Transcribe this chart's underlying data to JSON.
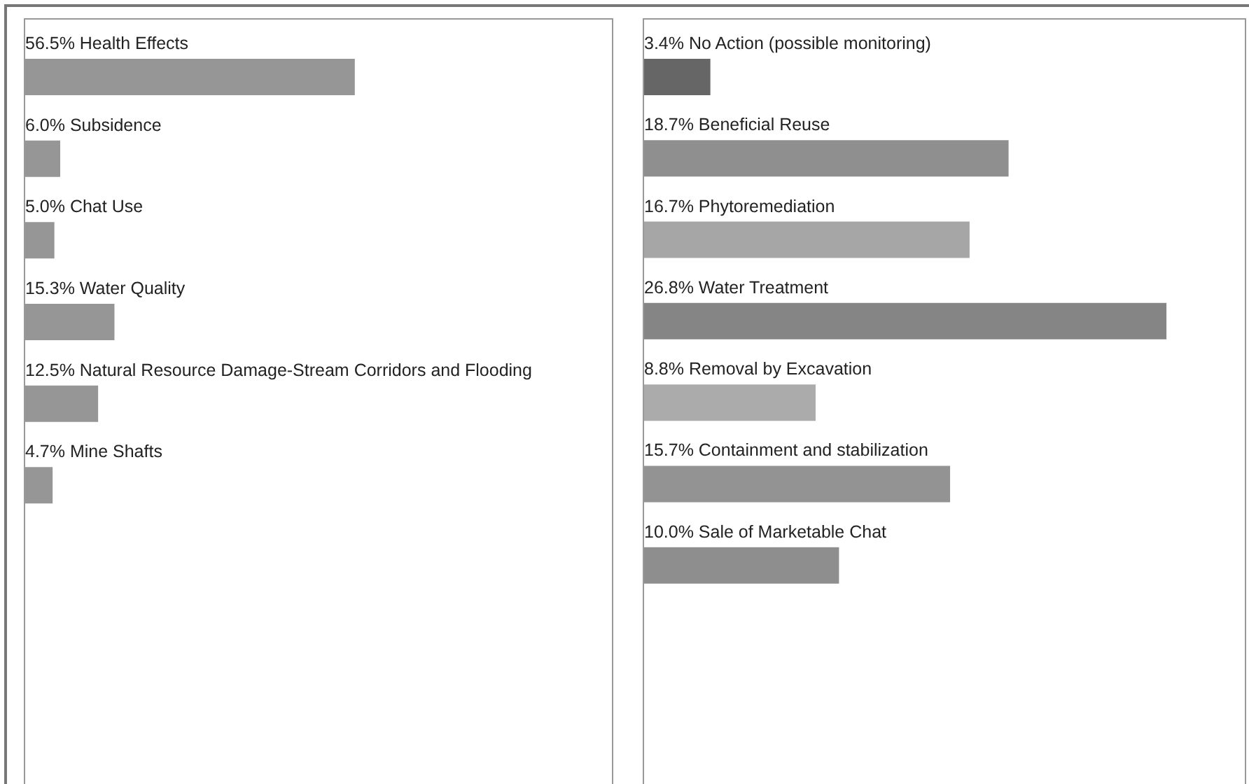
{
  "chart_data": [
    {
      "type": "bar",
      "orientation": "horizontal",
      "categories": [
        "Health Effects",
        "Subsidence",
        "Chat Use",
        "Water Quality",
        "Natural Resource Damage-Stream Corridors and Flooding",
        "Mine Shafts"
      ],
      "values": [
        56.5,
        6.0,
        5.0,
        15.3,
        12.5,
        4.7
      ],
      "value_labels": [
        "56.5%",
        "6.0%",
        "5.0%",
        "15.3%",
        "12.5%",
        "4.7%"
      ],
      "colors": [
        "#969696",
        "#969696",
        "#969696",
        "#969696",
        "#969696",
        "#969696"
      ],
      "tick_labels": false,
      "grid": false,
      "legend": false
    },
    {
      "type": "bar",
      "orientation": "horizontal",
      "categories": [
        "No Action (possible monitoring)",
        "Beneficial Reuse",
        "Phytoremediation",
        "Water Treatment",
        "Removal by Excavation",
        "Containment and stabilization",
        "Sale of Marketable Chat"
      ],
      "values": [
        3.4,
        18.7,
        16.7,
        26.8,
        8.8,
        15.7,
        10.0
      ],
      "value_labels": [
        "3.4%",
        "18.7%",
        "16.7%",
        "26.8%",
        "8.8%",
        "15.7%",
        "10.0%"
      ],
      "colors": [
        "#666666",
        "#8f8f8f",
        "#a6a6a6",
        "#858585",
        "#ababab",
        "#939393",
        "#8e8e8e"
      ],
      "tick_labels": false,
      "grid": false,
      "legend": false
    }
  ]
}
